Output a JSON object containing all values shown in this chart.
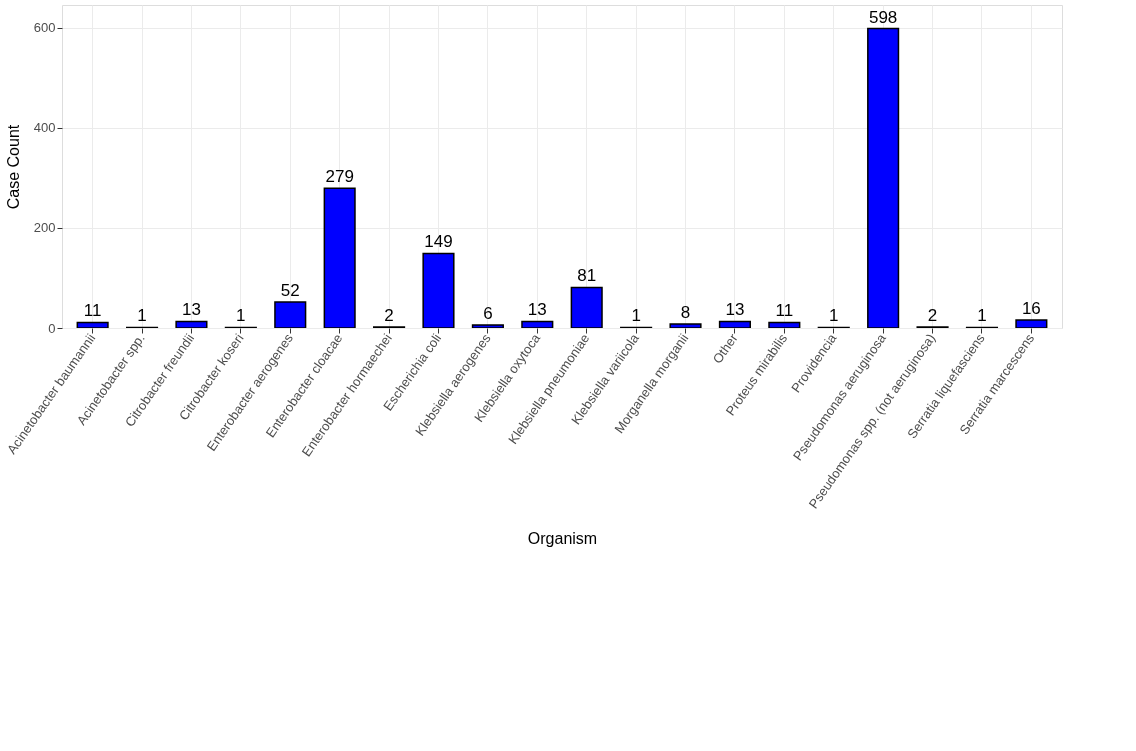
{
  "chart_data": {
    "type": "bar",
    "xlabel": "Organism",
    "ylabel": "Case Count",
    "categories": [
      "Acinetobacter baumannii",
      "Acinetobacter spp.",
      "Citrobacter freundii",
      "Citrobacter koseri",
      "Enterobacter aerogenes",
      "Enterobacter cloacae",
      "Enterobacter hormaechei",
      "Escherichia coli",
      "Klebsiella aerogenes",
      "Klebsiella oxytoca",
      "Klebsiella pneumoniae",
      "Klebsiella variicola",
      "Morganella morganii",
      "Other",
      "Proteus mirabilis",
      "Providencia",
      "Pseudomonas aeruginosa",
      "Pseudomonas spp. (not aeruginosa)",
      "Serratia liquefasciens",
      "Serratia marcescens"
    ],
    "values": [
      11,
      1,
      13,
      1,
      52,
      279,
      2,
      149,
      6,
      13,
      81,
      1,
      8,
      13,
      11,
      1,
      598,
      2,
      1,
      16
    ],
    "color": "#0000ff",
    "ylim": [
      0,
      645
    ],
    "yticks": [
      0,
      200,
      400,
      600
    ],
    "grid": true,
    "data_labels": true
  }
}
